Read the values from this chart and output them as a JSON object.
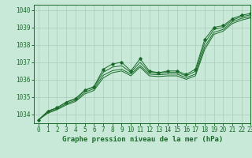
{
  "xlabel": "Graphe pression niveau de la mer (hPa)",
  "xlim": [
    -0.5,
    23
  ],
  "ylim": [
    1033.5,
    1040.3
  ],
  "yticks": [
    1034,
    1035,
    1036,
    1037,
    1038,
    1039,
    1040
  ],
  "xticks": [
    0,
    1,
    2,
    3,
    4,
    5,
    6,
    7,
    8,
    9,
    10,
    11,
    12,
    13,
    14,
    15,
    16,
    17,
    18,
    19,
    20,
    21,
    22,
    23
  ],
  "bg_color": "#c8e8d8",
  "grid_color": "#aaccbb",
  "line_color": "#1a6b2a",
  "series1": [
    1033.7,
    1034.2,
    1034.4,
    1034.7,
    1034.9,
    1035.4,
    1035.6,
    1036.6,
    1036.9,
    1037.0,
    1036.5,
    1037.2,
    1036.5,
    1036.4,
    1036.5,
    1036.5,
    1036.3,
    1036.6,
    1038.3,
    1039.0,
    1039.1,
    1039.5,
    1039.7,
    1039.8
  ],
  "series2": [
    1033.7,
    1034.18,
    1034.38,
    1034.72,
    1034.92,
    1035.38,
    1035.58,
    1036.42,
    1036.72,
    1036.8,
    1036.42,
    1037.0,
    1036.42,
    1036.38,
    1036.42,
    1036.42,
    1036.22,
    1036.48,
    1038.1,
    1038.88,
    1039.0,
    1039.42,
    1039.62,
    1039.72
  ],
  "series3": [
    1033.7,
    1034.12,
    1034.32,
    1034.62,
    1034.82,
    1035.28,
    1035.48,
    1036.25,
    1036.52,
    1036.6,
    1036.32,
    1036.82,
    1036.32,
    1036.28,
    1036.32,
    1036.32,
    1036.12,
    1036.32,
    1037.88,
    1038.72,
    1038.88,
    1039.32,
    1039.52,
    1039.62
  ],
  "series4": [
    1033.7,
    1034.08,
    1034.28,
    1034.55,
    1034.75,
    1035.18,
    1035.38,
    1036.1,
    1036.4,
    1036.5,
    1036.22,
    1036.72,
    1036.22,
    1036.18,
    1036.22,
    1036.22,
    1036.02,
    1036.22,
    1037.72,
    1038.6,
    1038.78,
    1039.22,
    1039.42,
    1039.55
  ],
  "tick_fontsize": 5.5,
  "label_fontsize": 6.5
}
